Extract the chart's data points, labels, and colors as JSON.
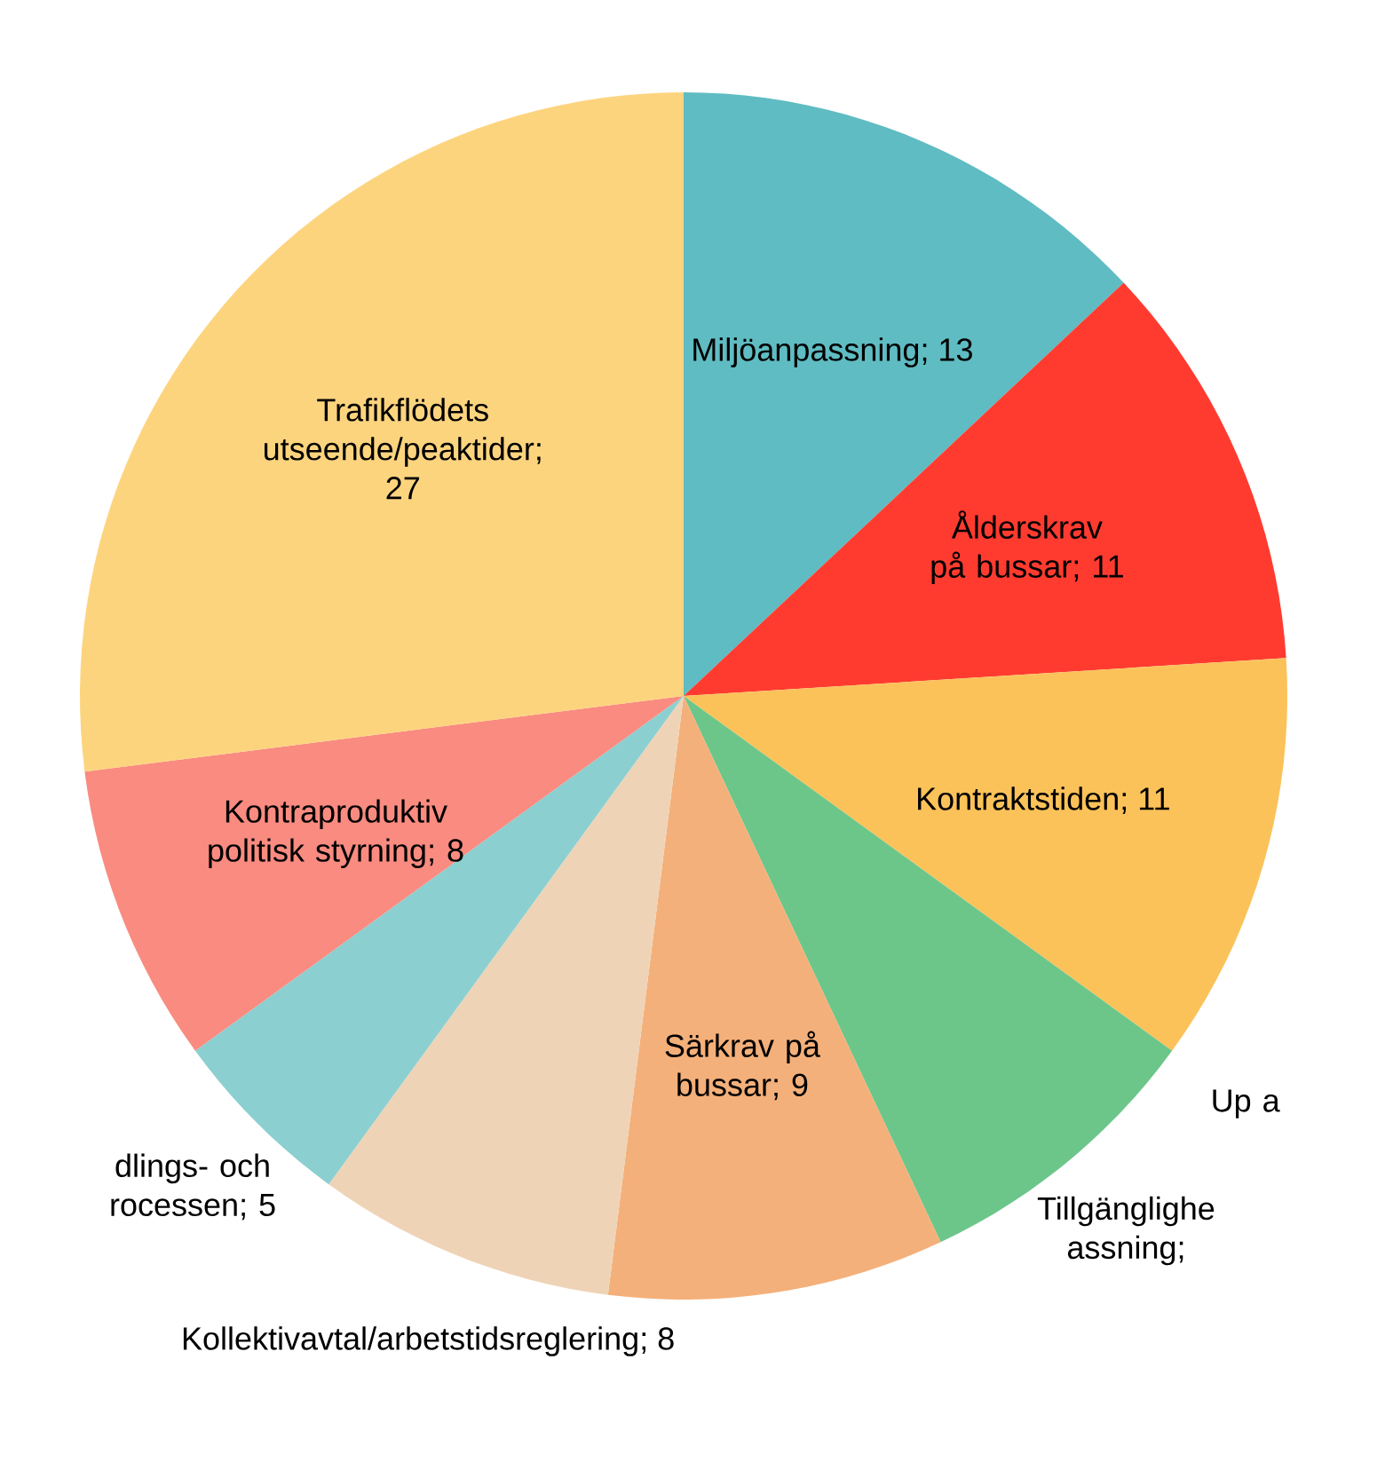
{
  "chart_data": {
    "type": "pie",
    "categories": [
      "Miljöanpassning",
      "Ålderskrav på bussar",
      "Kontraktstiden",
      "Up a",
      "Tillgänglighe assning",
      "Särkrav på bussar",
      "Kollektivavtal/arbetstidsreglering",
      "dlings- och rocessen",
      "Kontraproduktiv politisk styrning",
      "Trafikflödets utseende/peaktider"
    ],
    "values": [
      13,
      11,
      11,
      0,
      8,
      9,
      8,
      5,
      8,
      27
    ],
    "value_labels": [
      "; 13",
      "; 11",
      "; 11",
      null,
      ";",
      "; 9",
      "; 8",
      "; 5",
      "; 8",
      "; 27"
    ],
    "colors": [
      "#5fbcc2",
      "#ff3b30",
      "#fbc25a",
      "#f7a823",
      "#6cc68a",
      "#f4b07a",
      "#efd3b6",
      "#8ccfd0",
      "#f98b80",
      "#fdd47e"
    ]
  }
}
